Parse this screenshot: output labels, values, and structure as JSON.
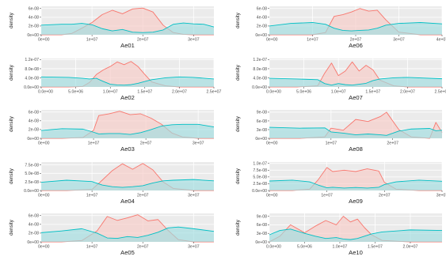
{
  "colors": {
    "panel_bg": "#ebebeb",
    "grid": "#ffffff",
    "red_line": "#f8766d",
    "red_fill": "#f8cbc6",
    "teal_line": "#00bfc4",
    "teal_fill": "#9fdde0"
  },
  "chart_data": [
    {
      "type": "area",
      "title": "Ae01",
      "ylabel": "density",
      "xticks": [
        "0e+00",
        "1e+07",
        "2e+07",
        "3e+07"
      ],
      "xlim": [
        0,
        34000000.0
      ],
      "yticks": [
        "0e+00",
        "2e-08",
        "4e-08",
        "6e-08"
      ],
      "ylim": [
        0,
        6.5e-08
      ],
      "grid": true,
      "x": [
        0,
        4000000.0,
        6000000.0,
        8000000.0,
        10000000.0,
        12000000.0,
        14000000.0,
        16000000.0,
        18000000.0,
        20000000.0,
        22000000.0,
        24000000.0,
        26000000.0,
        28000000.0,
        30000000.0,
        32000000.0,
        34000000.0
      ],
      "series": [
        {
          "color": "red",
          "values": [
            0,
            0,
            3e-09,
            1.5e-08,
            2.8e-08,
            4.6e-08,
            5.6e-08,
            4.8e-08,
            5.9e-08,
            6.1e-08,
            5.2e-08,
            2.2e-08,
            5e-09,
            1e-09,
            0,
            0,
            0
          ]
        },
        {
          "color": "teal",
          "values": [
            2.2e-08,
            2.4e-08,
            2.4e-08,
            2.6e-08,
            2.3e-08,
            1.4e-08,
            9e-09,
            1.2e-08,
            6e-09,
            5e-09,
            6e-09,
            1.1e-08,
            2.4e-08,
            2.7e-08,
            2.5e-08,
            2.4e-08,
            1.8e-08
          ]
        }
      ]
    },
    {
      "type": "area",
      "title": "Ae02",
      "ylabel": "density",
      "xticks": [
        "0.0e+00",
        "5.0e+06",
        "1.0e+07",
        "1.5e+07",
        "2.0e+07",
        "2.5e+07"
      ],
      "xlim": [
        0,
        25000000.0
      ],
      "yticks": [
        "0.0e+00",
        "4.0e-08",
        "8.0e-08",
        "1.2e-07"
      ],
      "ylim": [
        0,
        1.25e-07
      ],
      "grid": true,
      "x": [
        0,
        4000000.0,
        6000000.0,
        7000000.0,
        8000000.0,
        9000000.0,
        10000000.0,
        11000000.0,
        12000000.0,
        13000000.0,
        14000000.0,
        15000000.0,
        16000000.0,
        18000000.0,
        20000000.0,
        22000000.0,
        25000000.0
      ],
      "series": [
        {
          "color": "red",
          "values": [
            0,
            0,
            2e-09,
            2e-08,
            5.5e-08,
            7.5e-08,
            9e-08,
            1.1e-07,
            9.8e-08,
            1.12e-07,
            9e-08,
            5.5e-08,
            2.2e-08,
            5e-09,
            0,
            0,
            0
          ]
        },
        {
          "color": "teal",
          "values": [
            4.4e-08,
            4.2e-08,
            3.8e-08,
            3.5e-08,
            3.8e-08,
            2.4e-08,
            1.2e-08,
            9e-09,
            8e-09,
            1e-08,
            1.6e-08,
            2.4e-08,
            3.2e-08,
            4e-08,
            4.4e-08,
            4.2e-08,
            3.5e-08
          ]
        }
      ]
    },
    {
      "type": "area",
      "title": "Ae03",
      "ylabel": "density",
      "xticks": [
        "0e+00",
        "1e+07",
        "2e+07",
        "3e+07"
      ],
      "xlim": [
        0,
        33000000.0
      ],
      "yticks": [
        "0e+00",
        "2e-08",
        "4e-08",
        "6e-08"
      ],
      "ylim": [
        0,
        6.5e-08
      ],
      "grid": true,
      "x": [
        0,
        4000000.0,
        8000000.0,
        10000000.0,
        11000000.0,
        13000000.0,
        15000000.0,
        17000000.0,
        19000000.0,
        21000000.0,
        23000000.0,
        25000000.0,
        27000000.0,
        30000000.0,
        33000000.0
      ],
      "series": [
        {
          "color": "red",
          "values": [
            0,
            0,
            2e-09,
            1.8e-08,
            5.2e-08,
            5.6e-08,
            6.2e-08,
            5.4e-08,
            5.6e-08,
            4.6e-08,
            3.2e-08,
            1.2e-08,
            3e-09,
            0,
            0
          ]
        },
        {
          "color": "teal",
          "values": [
            1.8e-08,
            2.2e-08,
            2.1e-08,
            1.4e-08,
            1e-08,
            1.1e-08,
            1.1e-08,
            9e-09,
            1.3e-08,
            2e-08,
            2.8e-08,
            3.1e-08,
            3.2e-08,
            3.2e-08,
            2.6e-08
          ]
        }
      ]
    },
    {
      "type": "area",
      "title": "Ae04",
      "ylabel": "density",
      "xticks": [
        "0e+00",
        "1e+07",
        "2e+07",
        "3e+07"
      ],
      "xlim": [
        0,
        34000000.0
      ],
      "yticks": [
        "0.0e+00",
        "2.5e-08",
        "5.0e-08",
        "7.5e-08"
      ],
      "ylim": [
        0,
        8.3e-08
      ],
      "grid": true,
      "x": [
        0,
        5000000.0,
        10000000.0,
        12000000.0,
        14000000.0,
        16000000.0,
        18000000.0,
        20000000.0,
        22000000.0,
        24000000.0,
        26000000.0,
        30000000.0,
        34000000.0
      ],
      "series": [
        {
          "color": "red",
          "values": [
            0,
            0,
            3e-09,
            3e-08,
            5.8e-08,
            7.8e-08,
            6.2e-08,
            7.9e-08,
            6e-08,
            2.5e-08,
            6e-09,
            0,
            0
          ]
        },
        {
          "color": "teal",
          "values": [
            2.4e-08,
            3e-08,
            2.6e-08,
            1.6e-08,
            1.1e-08,
            9e-09,
            1.1e-08,
            1.4e-08,
            2.2e-08,
            2.8e-08,
            3e-08,
            3.2e-08,
            2.8e-08
          ]
        }
      ]
    },
    {
      "type": "area",
      "title": "Ae05",
      "ylabel": "density",
      "xticks": [
        "0e+00",
        "1e+07",
        "2e+07",
        "3e+07"
      ],
      "xlim": [
        0,
        34000000.0
      ],
      "yticks": [
        "0e+00",
        "2e-08",
        "4e-08",
        "6e-08"
      ],
      "ylim": [
        0,
        6.5e-08
      ],
      "grid": true,
      "x": [
        0,
        4000000.0,
        8000000.0,
        11000000.0,
        13000000.0,
        15000000.0,
        17000000.0,
        19000000.0,
        21000000.0,
        23000000.0,
        25000000.0,
        27000000.0,
        30000000.0,
        34000000.0
      ],
      "series": [
        {
          "color": "red",
          "values": [
            0,
            0,
            3e-09,
            2.5e-08,
            5.8e-08,
            4.9e-08,
            5.5e-08,
            6.2e-08,
            4.8e-08,
            5.1e-08,
            2.6e-08,
            5e-09,
            0,
            0
          ]
        },
        {
          "color": "teal",
          "values": [
            2.1e-08,
            2.5e-08,
            3e-08,
            2e-08,
            9e-09,
            8e-09,
            1.2e-08,
            1e-08,
            1.5e-08,
            2.2e-08,
            3.2e-08,
            3.4e-08,
            3e-08,
            2.4e-08
          ]
        }
      ]
    },
    {
      "type": "area",
      "title": "Ae06",
      "ylabel": "density",
      "xticks": [
        "0e+00",
        "1e+07",
        "2e+07",
        "3e+07",
        "4e+07"
      ],
      "xlim": [
        0,
        40000000.0
      ],
      "yticks": [
        "0e+00",
        "2e-08",
        "4e-08",
        "6e-08"
      ],
      "ylim": [
        0,
        6.5e-08
      ],
      "grid": true,
      "x": [
        0,
        5000000.0,
        10000000.0,
        13000000.0,
        15000000.0,
        17000000.0,
        19000000.0,
        21000000.0,
        23000000.0,
        25000000.0,
        27000000.0,
        30000000.0,
        35000000.0,
        40000000.0
      ],
      "series": [
        {
          "color": "red",
          "values": [
            0,
            0,
            0,
            5e-09,
            4.2e-08,
            4.6e-08,
            5.2e-08,
            6e-08,
            5.4e-08,
            5.6e-08,
            3.4e-08,
            6e-09,
            0,
            0
          ]
        },
        {
          "color": "teal",
          "values": [
            2e-08,
            2.6e-08,
            2.8e-08,
            2.4e-08,
            1.5e-08,
            1e-08,
            9e-09,
            1e-08,
            1.1e-08,
            1.5e-08,
            2.2e-08,
            2.6e-08,
            2.8e-08,
            2.5e-08
          ]
        }
      ]
    },
    {
      "type": "area",
      "title": "Ae07",
      "ylabel": "density",
      "xticks": [
        "0.0e+00",
        "5.0e+06",
        "1.0e+07",
        "1.5e+07",
        "2.0e+07",
        "2.5e+07"
      ],
      "xlim": [
        0,
        25000000.0
      ],
      "yticks": [
        "0.0e+00",
        "4.0e-08",
        "8.0e-08",
        "1.2e-07"
      ],
      "ylim": [
        0,
        1.25e-07
      ],
      "grid": true,
      "x": [
        0,
        4000000.0,
        7000000.0,
        8000000.0,
        9000000.0,
        10000000.0,
        11000000.0,
        12000000.0,
        13000000.0,
        14000000.0,
        15000000.0,
        16000000.0,
        18000000.0,
        20000000.0,
        25000000.0
      ],
      "series": [
        {
          "color": "red",
          "values": [
            0,
            0,
            5e-09,
            6e-08,
            1.05e-07,
            5e-08,
            7e-08,
            1.1e-07,
            7e-08,
            9.5e-08,
            7.5e-08,
            3e-08,
            5e-09,
            0,
            0
          ]
        },
        {
          "color": "teal",
          "values": [
            3.8e-08,
            3.5e-08,
            3.2e-08,
            1.5e-08,
            8e-09,
            1.5e-08,
            1e-08,
            8e-09,
            1.2e-08,
            1.6e-08,
            2.8e-08,
            3.5e-08,
            4e-08,
            4.2e-08,
            3.6e-08
          ]
        }
      ]
    },
    {
      "type": "area",
      "title": "Ae08",
      "ylabel": "density",
      "xticks": [
        "0e+00",
        "1e+07",
        "2e+07"
      ],
      "xlim": [
        0,
        28000000.0
      ],
      "yticks": [
        "0e+00",
        "3e-08",
        "6e-08",
        "9e-08"
      ],
      "ylim": [
        0,
        9.8e-08
      ],
      "grid": true,
      "x": [
        0,
        5000000.0,
        9000000.0,
        10000000.0,
        12000000.0,
        14000000.0,
        16000000.0,
        18000000.0,
        19000000.0,
        21000000.0,
        23000000.0,
        26000000.0,
        27000000.0,
        28000000.0
      ],
      "series": [
        {
          "color": "red",
          "values": [
            0,
            0,
            5e-09,
            3.5e-08,
            2.8e-08,
            6.5e-08,
            5.8e-08,
            7.5e-08,
            9e-08,
            3e-08,
            5e-09,
            0,
            5.5e-08,
            2e-08
          ]
        },
        {
          "color": "teal",
          "values": [
            3.8e-08,
            3.5e-08,
            3.6e-08,
            2.2e-08,
            1.8e-08,
            1.2e-08,
            1.5e-08,
            1.2e-08,
            1e-08,
            2.5e-08,
            3.2e-08,
            3.4e-08,
            2.6e-08,
            2.8e-08
          ]
        }
      ]
    },
    {
      "type": "area",
      "title": "Ae09",
      "ylabel": "density",
      "xticks": [
        "0e+00",
        "1e+07",
        "2e+07",
        "3e+07"
      ],
      "xlim": [
        0,
        30000000.0
      ],
      "yticks": [
        "0.0e+00",
        "2.5e-08",
        "5.0e-08",
        "7.5e-08",
        "1.0e-07"
      ],
      "ylim": [
        0,
        1.05e-07
      ],
      "grid": true,
      "x": [
        0,
        4000000.0,
        7000000.0,
        8500000.0,
        10000000.0,
        11000000.0,
        13000000.0,
        15000000.0,
        17000000.0,
        19000000.0,
        20000000.0,
        22000000.0,
        26000000.0,
        30000000.0
      ],
      "series": [
        {
          "color": "red",
          "values": [
            0,
            0,
            5e-09,
            4e-08,
            8.5e-08,
            7e-08,
            7.5e-08,
            7e-08,
            8e-08,
            7.2e-08,
            3e-08,
            5e-09,
            0,
            0
          ]
        },
        {
          "color": "teal",
          "values": [
            3.5e-08,
            3.8e-08,
            3.2e-08,
            2e-08,
            1e-08,
            1.2e-08,
            9e-09,
            1.1e-08,
            9e-09,
            1.2e-08,
            2.2e-08,
            3.2e-08,
            3.8e-08,
            3.4e-08
          ]
        }
      ]
    },
    {
      "type": "area",
      "title": "Ae10",
      "ylabel": "density",
      "xticks": [
        "0.0e+00",
        "5.0e+06",
        "1.0e+07",
        "1.5e+07",
        "2.0e+07"
      ],
      "xlim": [
        0,
        24500000.0
      ],
      "yticks": [
        "0e+00",
        "3e-08",
        "6e-08",
        "9e-08"
      ],
      "ylim": [
        0,
        1e-07
      ],
      "grid": true,
      "x": [
        0,
        1500000.0,
        3000000.0,
        5000000.0,
        6500000.0,
        8000000.0,
        9500000.0,
        10500000.0,
        11500000.0,
        12500000.0,
        13500000.0,
        14500000.0,
        16000000.0,
        20000000.0,
        24500000.0
      ],
      "series": [
        {
          "color": "red",
          "values": [
            0,
            2e-08,
            6e-08,
            3.2e-08,
            5.5e-08,
            7.5e-08,
            6e-08,
            9e-08,
            7e-08,
            8e-08,
            5e-08,
            2.5e-08,
            5e-09,
            0,
            0
          ]
        },
        {
          "color": "teal",
          "values": [
            2.5e-08,
            4e-08,
            4.5e-08,
            3e-08,
            2e-08,
            1.2e-08,
            1.5e-08,
            1e-08,
            8e-09,
            1.2e-08,
            2e-08,
            2.8e-08,
            3.5e-08,
            4.2e-08,
            4e-08
          ]
        }
      ]
    }
  ]
}
